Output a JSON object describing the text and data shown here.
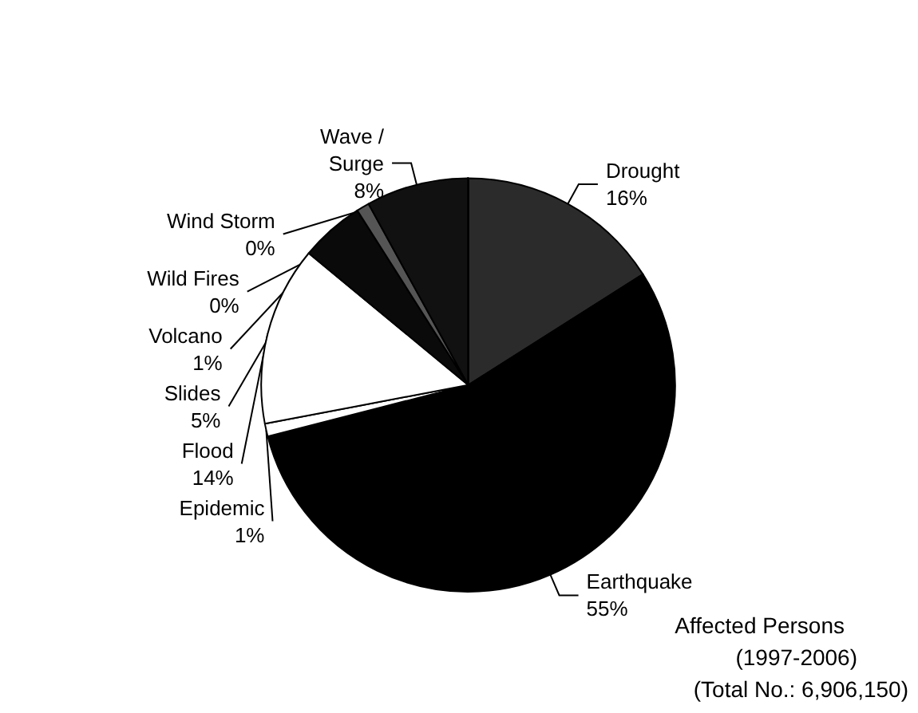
{
  "chart_data": {
    "type": "pie",
    "title": "Affected Persons",
    "subtitle": "(1997-2006)",
    "annotations": [
      "(Total No.: 6,906,150)"
    ],
    "categories": [
      "Wind Storm",
      "Drought",
      "Earthquake",
      "Epidemic",
      "Flood",
      "Slides",
      "Volcano",
      "Wave / Surge",
      "Wild Fires"
    ],
    "values": [
      0,
      16,
      55,
      1,
      14,
      5,
      1,
      8,
      0
    ],
    "value_labels": [
      "0%",
      "16%",
      "55%",
      "1%",
      "14%",
      "5%",
      "1%",
      "8%",
      "0%"
    ],
    "colors": [
      "#444444",
      "#2b2b2b",
      "#000000",
      "#ffffff",
      "#ffffff",
      "#0a0a0a",
      "#555555",
      "#111111",
      "#333333"
    ],
    "legend": false
  }
}
